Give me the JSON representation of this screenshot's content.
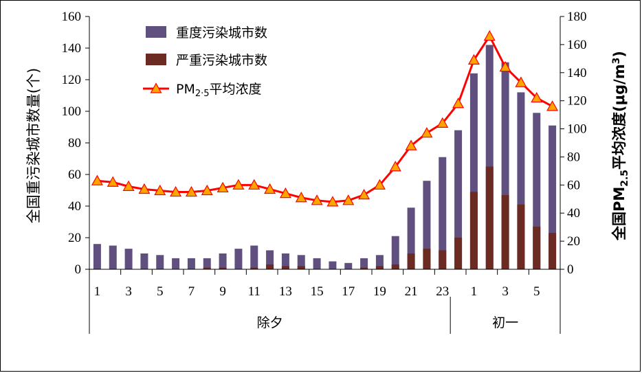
{
  "chart_data": {
    "type": "bar",
    "x_labels": [
      "1",
      "",
      "3",
      "",
      "5",
      "",
      "7",
      "",
      "9",
      "",
      "11",
      "",
      "13",
      "",
      "15",
      "",
      "17",
      "",
      "19",
      "",
      "21",
      "",
      "23",
      "",
      "1",
      "",
      "3",
      "",
      "5",
      ""
    ],
    "groups": [
      {
        "label": "除夕",
        "start": 0,
        "end": 23
      },
      {
        "label": "初一",
        "start": 23,
        "end": 30
      }
    ],
    "series": [
      {
        "name": "重度污染城市数",
        "type": "bar",
        "axis": "left",
        "color": "#605080",
        "values": [
          16,
          15,
          13,
          10,
          9,
          7,
          7,
          7,
          10,
          13,
          15,
          12,
          10,
          9,
          7,
          5,
          4,
          7,
          9,
          21,
          39,
          56,
          71,
          88,
          124,
          142,
          131,
          112,
          99,
          91
        ]
      },
      {
        "name": "严重污染城市数",
        "type": "bar",
        "axis": "left",
        "color": "#6b2a22",
        "values": [
          0,
          0,
          0,
          0,
          0,
          0,
          0,
          1,
          1,
          0,
          1,
          3,
          2,
          2,
          0,
          0,
          0,
          1,
          2,
          3,
          10,
          13,
          12,
          20,
          49,
          65,
          47,
          41,
          27,
          23
        ]
      },
      {
        "name": "PM₂.₅平均浓度",
        "name_main": "PM",
        "name_sub": "2·5",
        "name_tail": "平均浓度",
        "type": "line",
        "axis": "right",
        "line_color": "#ff0000",
        "marker_fill": "#ffa500",
        "values": [
          63,
          62,
          59,
          57,
          56,
          55,
          55,
          56,
          58,
          60,
          60,
          57,
          54,
          51,
          49,
          48,
          49,
          53,
          60,
          73,
          88,
          97,
          104,
          118,
          149,
          166,
          144,
          133,
          122,
          116
        ]
      }
    ],
    "left_axis": {
      "title": "全国重污染城市数量(个)",
      "min": 0,
      "max": 160,
      "step": 20,
      "ticks": [
        "0",
        "20",
        "40",
        "60",
        "80",
        "100",
        "120",
        "140",
        "160"
      ]
    },
    "right_axis": {
      "title_pre": "全国PM",
      "title_sub": "2.5",
      "title_mid": "平均浓度(μg/m",
      "title_sup": "3",
      "title_post": ")",
      "min": 0,
      "max": 180,
      "step": 20,
      "ticks": [
        "0",
        "20",
        "40",
        "60",
        "80",
        "100",
        "120",
        "140",
        "160",
        "180"
      ]
    },
    "legend_position": "top-left",
    "grid": false
  }
}
